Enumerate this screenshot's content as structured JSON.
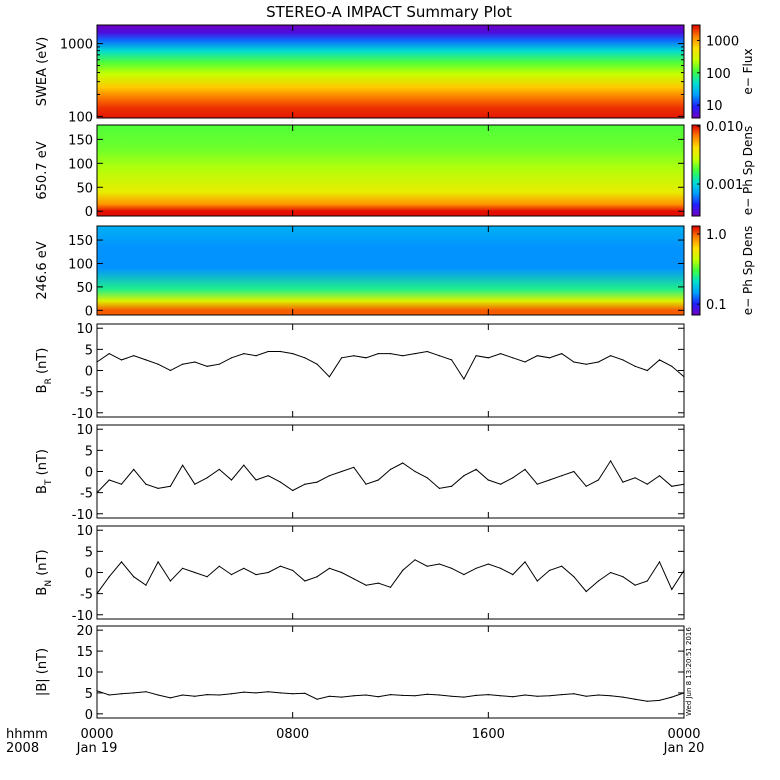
{
  "title": "STEREO-A IMPACT Summary Plot",
  "stamp": "Wed Jun  8 13:20:51 2016",
  "time_axis": {
    "corner_labels": [
      "hhmm",
      "2008"
    ],
    "ticks": [
      {
        "t": 0,
        "top": "0000",
        "bottom": "Jan 19"
      },
      {
        "t": 8,
        "top": "0800",
        "bottom": ""
      },
      {
        "t": 16,
        "top": "1600",
        "bottom": ""
      },
      {
        "t": 24,
        "top": "0000",
        "bottom": "Jan 20"
      }
    ],
    "range_hours": [
      0,
      24
    ]
  },
  "colorbar_colors": [
    "#7000c0",
    "#2020ff",
    "#00a0ff",
    "#00e0d0",
    "#40ff40",
    "#c8ff00",
    "#ffe000",
    "#ff8000",
    "#e00000"
  ],
  "chart_data": [
    {
      "id": "swea",
      "type": "heatmap",
      "ylabel": "SWEA (eV)",
      "yscale": "log",
      "ylim": [
        95,
        1800
      ],
      "yticks": [
        100,
        1000
      ],
      "ytick_labels": [
        "100",
        "1000"
      ],
      "colorbar": {
        "label": "e− Flux",
        "scale": "log",
        "range": [
          4,
          3000
        ],
        "ticks": [
          10,
          100,
          1000
        ],
        "tick_labels": [
          "10",
          "100",
          "1000"
        ]
      },
      "bands": [
        {
          "y": 1800,
          "v": 3
        },
        {
          "y": 1400,
          "v": 6
        },
        {
          "y": 1100,
          "v": 15
        },
        {
          "y": 800,
          "v": 45
        },
        {
          "y": 550,
          "v": 120
        },
        {
          "y": 380,
          "v": 250
        },
        {
          "y": 250,
          "v": 700
        },
        {
          "y": 170,
          "v": 1500
        },
        {
          "y": 130,
          "v": 2200
        },
        {
          "y": 95,
          "v": 2600
        }
      ]
    },
    {
      "id": "ph650",
      "type": "heatmap",
      "ylabel": "650.7 eV",
      "ylim": [
        -10,
        180
      ],
      "yticks": [
        0,
        50,
        100,
        150
      ],
      "colorbar": {
        "label": "e− Ph Sp Dens",
        "scale": "log",
        "range": [
          0.00028,
          0.0105
        ],
        "ticks": [
          0.001,
          0.01
        ],
        "tick_labels": [
          "0.001",
          "0.010"
        ]
      },
      "profile": [
        {
          "pa": 0,
          "v": 0.01
        },
        {
          "pa": 15,
          "v": 0.006
        },
        {
          "pa": 40,
          "v": 0.0035
        },
        {
          "pa": 90,
          "v": 0.0025
        },
        {
          "pa": 130,
          "v": 0.002
        },
        {
          "pa": 180,
          "v": 0.0018
        }
      ]
    },
    {
      "id": "ph246",
      "type": "heatmap",
      "ylabel": "246.6 eV",
      "ylim": [
        -10,
        180
      ],
      "yticks": [
        0,
        50,
        100,
        150
      ],
      "colorbar": {
        "label": "e− Ph Sp Dens",
        "scale": "log",
        "range": [
          0.07,
          1.3
        ],
        "ticks": [
          0.1,
          1.0
        ],
        "tick_labels": [
          "0.1",
          "1.0"
        ]
      },
      "profile": [
        {
          "pa": 0,
          "v": 1.0
        },
        {
          "pa": 20,
          "v": 0.5
        },
        {
          "pa": 45,
          "v": 0.25
        },
        {
          "pa": 90,
          "v": 0.14
        },
        {
          "pa": 135,
          "v": 0.14
        },
        {
          "pa": 180,
          "v": 0.16
        }
      ]
    },
    {
      "id": "br",
      "type": "line",
      "ylabel": "B",
      "ylabel_sub": "R",
      "ylabel_unit": "(nT)",
      "ylim": [
        -11,
        11
      ],
      "yticks": [
        -10,
        -5,
        0,
        5,
        10
      ],
      "x": [
        0,
        0.5,
        1,
        1.5,
        2,
        2.5,
        3,
        3.5,
        4,
        4.5,
        5,
        5.5,
        6,
        6.5,
        7,
        7.5,
        8,
        8.5,
        9,
        9.5,
        10,
        10.5,
        11,
        11.5,
        12,
        12.5,
        13,
        13.5,
        14,
        14.5,
        15,
        15.5,
        16,
        16.5,
        17,
        17.5,
        18,
        18.5,
        19,
        19.5,
        20,
        20.5,
        21,
        21.5,
        22,
        22.5,
        23,
        23.5,
        24
      ],
      "y": [
        2.0,
        4.0,
        2.5,
        3.5,
        2.5,
        1.5,
        0.0,
        1.5,
        2.0,
        1.0,
        1.5,
        3.0,
        4.0,
        3.5,
        4.5,
        4.5,
        4.0,
        3.0,
        1.5,
        -1.5,
        3.0,
        3.5,
        3.0,
        4.0,
        4.0,
        3.5,
        4.0,
        4.5,
        3.5,
        2.5,
        -2.0,
        3.5,
        3.0,
        4.0,
        3.0,
        2.0,
        3.5,
        3.0,
        4.0,
        2.0,
        1.5,
        2.0,
        3.5,
        2.5,
        1.0,
        0.0,
        2.5,
        1.0,
        -1.5
      ]
    },
    {
      "id": "bt",
      "type": "line",
      "ylabel": "B",
      "ylabel_sub": "T",
      "ylabel_unit": "(nT)",
      "ylim": [
        -11,
        11
      ],
      "yticks": [
        -10,
        -5,
        0,
        5,
        10
      ],
      "x": [
        0,
        0.5,
        1,
        1.5,
        2,
        2.5,
        3,
        3.5,
        4,
        4.5,
        5,
        5.5,
        6,
        6.5,
        7,
        7.5,
        8,
        8.5,
        9,
        9.5,
        10,
        10.5,
        11,
        11.5,
        12,
        12.5,
        13,
        13.5,
        14,
        14.5,
        15,
        15.5,
        16,
        16.5,
        17,
        17.5,
        18,
        18.5,
        19,
        19.5,
        20,
        20.5,
        21,
        21.5,
        22,
        22.5,
        23,
        23.5,
        24
      ],
      "y": [
        -5.0,
        -2.0,
        -3.0,
        0.5,
        -3.0,
        -4.0,
        -3.5,
        1.5,
        -3.0,
        -1.5,
        0.5,
        -2.0,
        1.5,
        -2.0,
        -1.0,
        -2.5,
        -4.5,
        -3.0,
        -2.5,
        -1.0,
        0.0,
        1.0,
        -3.0,
        -2.0,
        0.5,
        2.0,
        0.0,
        -1.5,
        -4.0,
        -3.5,
        -1.0,
        0.5,
        -2.0,
        -3.0,
        -1.5,
        0.5,
        -3.0,
        -2.0,
        -1.0,
        0.0,
        -3.5,
        -2.0,
        2.5,
        -2.5,
        -1.5,
        -3.0,
        -1.0,
        -3.5,
        -3.0
      ]
    },
    {
      "id": "bn",
      "type": "line",
      "ylabel": "B",
      "ylabel_sub": "N",
      "ylabel_unit": "(nT)",
      "ylim": [
        -11,
        11
      ],
      "yticks": [
        -10,
        -5,
        0,
        5,
        10
      ],
      "x": [
        0,
        0.5,
        1,
        1.5,
        2,
        2.5,
        3,
        3.5,
        4,
        4.5,
        5,
        5.5,
        6,
        6.5,
        7,
        7.5,
        8,
        8.5,
        9,
        9.5,
        10,
        10.5,
        11,
        11.5,
        12,
        12.5,
        13,
        13.5,
        14,
        14.5,
        15,
        15.5,
        16,
        16.5,
        17,
        17.5,
        18,
        18.5,
        19,
        19.5,
        20,
        20.5,
        21,
        21.5,
        22,
        22.5,
        23,
        23.5,
        24
      ],
      "y": [
        -5.0,
        -1.0,
        2.5,
        -1.0,
        -3.0,
        2.5,
        -2.0,
        1.0,
        0.0,
        -1.0,
        1.5,
        -0.5,
        1.0,
        -0.5,
        0.0,
        1.5,
        0.5,
        -2.0,
        -1.0,
        1.0,
        0.0,
        -1.5,
        -3.0,
        -2.5,
        -3.5,
        0.5,
        3.0,
        1.5,
        2.0,
        1.0,
        -0.5,
        1.0,
        2.0,
        1.0,
        -0.5,
        2.5,
        -2.0,
        0.5,
        1.5,
        -1.0,
        -4.5,
        -2.0,
        0.0,
        -1.0,
        -3.0,
        -2.0,
        2.5,
        -4.0,
        0.5
      ]
    },
    {
      "id": "bmag",
      "type": "line",
      "ylabel": "|B| (nT)",
      "ylim": [
        -1,
        21
      ],
      "yticks": [
        0,
        5,
        10,
        15,
        20
      ],
      "x": [
        0,
        0.5,
        1,
        1.5,
        2,
        2.5,
        3,
        3.5,
        4,
        4.5,
        5,
        5.5,
        6,
        6.5,
        7,
        7.5,
        8,
        8.5,
        9,
        9.5,
        10,
        10.5,
        11,
        11.5,
        12,
        12.5,
        13,
        13.5,
        14,
        14.5,
        15,
        15.5,
        16,
        16.5,
        17,
        17.5,
        18,
        18.5,
        19,
        19.5,
        20,
        20.5,
        21,
        21.5,
        22,
        22.5,
        23,
        23.5,
        24
      ],
      "y": [
        5.5,
        4.5,
        4.8,
        5.0,
        5.3,
        4.5,
        3.8,
        4.5,
        4.2,
        4.6,
        4.5,
        4.8,
        5.2,
        5.0,
        5.3,
        5.0,
        4.8,
        4.9,
        3.5,
        4.2,
        4.0,
        4.3,
        4.5,
        4.1,
        4.6,
        4.4,
        4.3,
        4.7,
        4.5,
        4.2,
        4.0,
        4.4,
        4.6,
        4.3,
        4.1,
        4.5,
        4.2,
        4.3,
        4.6,
        4.8,
        4.2,
        4.5,
        4.3,
        4.0,
        3.5,
        3.0,
        3.2,
        4.0,
        5.0
      ]
    }
  ]
}
